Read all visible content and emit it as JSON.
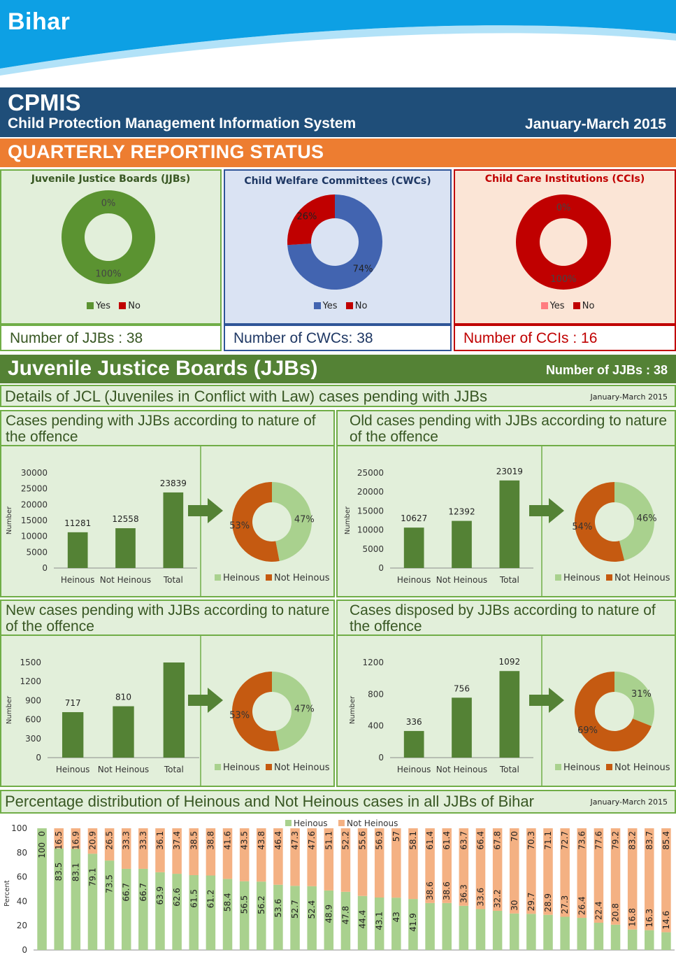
{
  "header": {
    "state": "Bihar",
    "system_short": "CPMIS",
    "system_full": "Child Protection Management Information System",
    "period": "January-March 2015"
  },
  "reporting_status": {
    "title": "QUARTERLY REPORTING STATUS",
    "legend_yes": "Yes",
    "legend_no": "No",
    "colors": {
      "jjb_yes": "#5b9331",
      "jjb_no": "#c00000",
      "cwc_yes": "#4264b0",
      "cwc_no": "#c00000",
      "cci_yes": "#ff7c80",
      "cci_no": "#c00000"
    },
    "jjb": {
      "title": "Juvenile Justice Boards (JJBs)",
      "yes_label": "100%",
      "no_label": "0%",
      "count_text": "Number of JJBs : 38"
    },
    "cwc": {
      "title": "Child Welfare Committees (CWCs)",
      "yes_label": "74%",
      "no_label": "26%",
      "count_text": "Number of CWCs: 38"
    },
    "cci": {
      "title": "Child Care Institutions (CCIs)",
      "yes_label": "0%",
      "no_label": "100%",
      "count_text": "Number of CCIs : 16"
    }
  },
  "jjb_section": {
    "title": "Juvenile Justice Boards (JJBs)",
    "count_text": "Number of JJBs : 38",
    "details_title": "Details of JCL (Juveniles in Conflict with Law) cases pending with JJBs",
    "details_period": "January-March 2015",
    "distribution_title": "Percentage distribution of Heinous and Not Heinous cases in all JJBs of Bihar",
    "distribution_period": "January-March 2015"
  },
  "chart_data": [
    {
      "type": "pie",
      "title": "Juvenile Justice Boards (JJBs)",
      "categories": [
        "Yes",
        "No"
      ],
      "values": [
        100,
        0
      ],
      "value_labels": [
        "100%",
        "0%"
      ],
      "legend": "bottom"
    },
    {
      "type": "pie",
      "title": "Child Welfare Committees (CWCs)",
      "categories": [
        "Yes",
        "No"
      ],
      "values": [
        74,
        26
      ],
      "value_labels": [
        "74%",
        "26%"
      ],
      "legend": "bottom"
    },
    {
      "type": "pie",
      "title": "Child Care Institutions (CCIs)",
      "categories": [
        "Yes",
        "No"
      ],
      "values": [
        0,
        100
      ],
      "value_labels": [
        "0%",
        "100%"
      ],
      "legend": "bottom"
    },
    {
      "type": "bar",
      "title": "Cases pending with JJBs according to nature of the offence",
      "categories": [
        "Heinous",
        "Not Heinous",
        "Total"
      ],
      "values": [
        11281,
        12558,
        23839
      ],
      "ylabel": "Number",
      "ylim": [
        0,
        30000
      ],
      "yticks": [
        0,
        5000,
        10000,
        15000,
        20000,
        25000,
        30000
      ],
      "donut": {
        "type": "pie",
        "categories": [
          "Heinous",
          "Not Heinous"
        ],
        "values": [
          47,
          53
        ],
        "value_labels": [
          "47%",
          "53%"
        ],
        "legend": "bottom"
      }
    },
    {
      "type": "bar",
      "title": "Old cases pending with JJBs according to nature of the offence",
      "categories": [
        "Heinous",
        "Not Heinous",
        "Total"
      ],
      "values": [
        10627,
        12392,
        23019
      ],
      "ylabel": "Number",
      "ylim": [
        0,
        25000
      ],
      "yticks": [
        0,
        5000,
        10000,
        15000,
        20000,
        25000
      ],
      "donut": {
        "type": "pie",
        "categories": [
          "Heinous",
          "Not Heinous"
        ],
        "values": [
          46,
          54
        ],
        "value_labels": [
          "46%",
          "54%"
        ],
        "legend": "bottom"
      }
    },
    {
      "type": "bar",
      "title": "New cases pending with JJBs according to nature of the offence",
      "categories": [
        "Heinous",
        "Not Heinous",
        "Total"
      ],
      "values": [
        717,
        810,
        1527
      ],
      "value_labels": [
        "717",
        "810",
        ""
      ],
      "ylabel": "Number",
      "ylim": [
        0,
        1500
      ],
      "yticks": [
        0,
        300,
        600,
        900,
        1200,
        1500
      ],
      "donut": {
        "type": "pie",
        "categories": [
          "Heinous",
          "Not Heinous"
        ],
        "values": [
          47,
          53
        ],
        "value_labels": [
          "47%",
          "53%"
        ],
        "legend": "bottom"
      }
    },
    {
      "type": "bar",
      "title": "Cases disposed by JJBs  according to nature of the offence",
      "categories": [
        "Heinous",
        "Not Heinous",
        "Total"
      ],
      "values": [
        336,
        756,
        1092
      ],
      "ylabel": "Number",
      "ylim": [
        0,
        1200
      ],
      "yticks": [
        0,
        400,
        800,
        1200
      ],
      "donut": {
        "type": "pie",
        "categories": [
          "Heinous",
          "Not Heinous"
        ],
        "values": [
          31,
          69
        ],
        "value_labels": [
          "31%",
          "69%"
        ],
        "legend": "bottom"
      }
    },
    {
      "type": "bar",
      "stacked": true,
      "title": "Percentage distribution of Heinous and Not Heinous cases in all JJBs of Bihar",
      "ylabel": "Percent",
      "ylim": [
        0,
        100
      ],
      "yticks": [
        0,
        20,
        40,
        60,
        80,
        100
      ],
      "legend": "top",
      "series": [
        {
          "name": "Heinous",
          "color": "#a9d18e",
          "values": [
            100,
            83.5,
            83.1,
            79.1,
            73.5,
            66.7,
            66.7,
            63.9,
            62.6,
            61.5,
            61.2,
            58.4,
            56.5,
            56.2,
            53.6,
            52.7,
            52.4,
            48.9,
            47.8,
            44.4,
            43.1,
            43,
            41.9,
            38.6,
            38.6,
            36.3,
            33.6,
            32.2,
            30,
            29.7,
            28.9,
            27.3,
            26.4,
            22.4,
            20.8,
            16.8,
            16.3,
            14.6
          ]
        },
        {
          "name": "Not Heinous",
          "color": "#f4b183",
          "values": [
            0,
            16.5,
            16.9,
            20.9,
            26.5,
            33.3,
            33.3,
            36.1,
            37.4,
            38.5,
            38.8,
            41.6,
            43.5,
            43.8,
            46.4,
            47.3,
            47.6,
            51.1,
            52.2,
            55.6,
            56.9,
            57,
            58.1,
            61.4,
            61.4,
            63.7,
            66.4,
            67.8,
            70,
            70.3,
            71.1,
            72.7,
            73.6,
            77.6,
            79.2,
            83.2,
            83.7,
            85.4
          ]
        }
      ]
    }
  ]
}
